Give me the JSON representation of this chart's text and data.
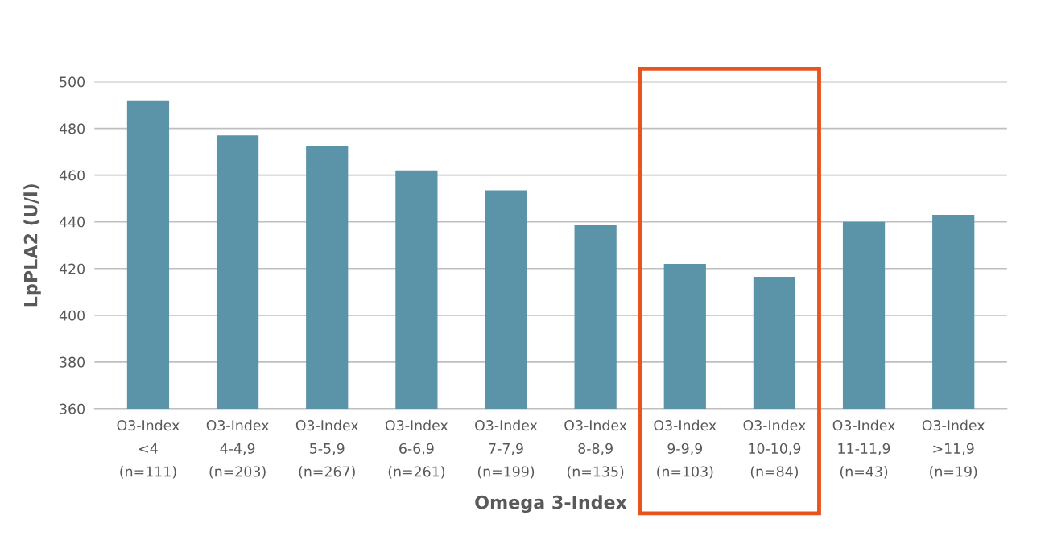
{
  "chart_data": {
    "type": "bar",
    "xlabel": "Omega 3-Index",
    "ylabel": "LpPLA2 (U/l)",
    "categories": [
      "O3-Index\n<4\n(n=111)",
      "O3-Index\n4-4,9\n(n=203)",
      "O3-Index\n5-5,9\n(n=267)",
      "O3-Index\n6-6,9\n(n=261)",
      "O3-Index\n7-7,9\n(n=199)",
      "O3-Index\n8-8,9\n(n=135)",
      "O3-Index\n9-9,9\n(n=103)",
      "O3-Index\n10-10,9\n(n=84)",
      "O3-Index\n11-11,9\n(n=43)",
      "O3-Index\n>11,9\n(n=19)"
    ],
    "values": [
      492,
      477,
      472.5,
      462,
      453.5,
      438.5,
      422,
      416.5,
      440,
      443
    ],
    "color": "#5b93a8",
    "ylim": [
      360,
      500
    ],
    "yticks": [
      360,
      380,
      400,
      420,
      440,
      460,
      480,
      500
    ],
    "grid": "y"
  }
}
